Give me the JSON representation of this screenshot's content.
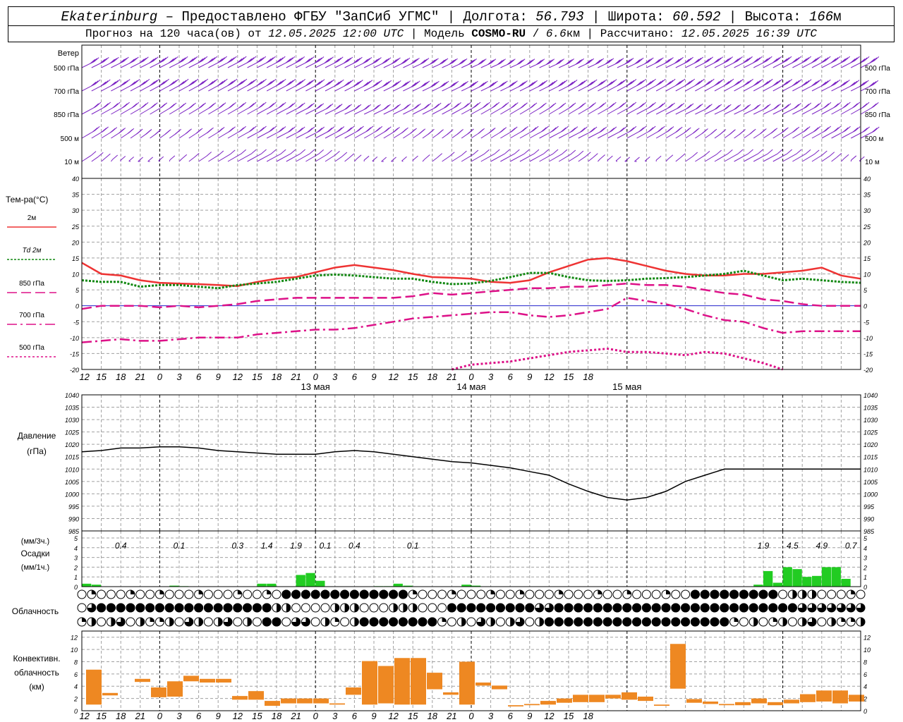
{
  "header": {
    "station": "Ekaterinburg",
    "dash": " – ",
    "provided": "Предоставлено ФГБУ \"ЗапСиб УГМС\"",
    "lon_label": "Долгота:",
    "lon": "56.793",
    "lat_label": "Широта:",
    "lat": "60.592",
    "alt_label": "Высота:",
    "alt": "166",
    "alt_unit": "м",
    "forecast_label": "Прогноз на 120 часа(ов) от",
    "forecast_time": "12.05.2025 12:00 UTC",
    "model_label": "Модель",
    "model": "COSMO-RU",
    "model_res": "6.6",
    "model_res_unit": "км",
    "calc_label": "Рассчитано:",
    "calc_time": "12.05.2025 16:39 UTC"
  },
  "colors": {
    "wind": "#7b22c4",
    "t2m": "#ee3333",
    "td": "#118811",
    "t850": "#dd1188",
    "t700": "#dd1188",
    "t500": "#dd1188",
    "precip": "#22cc22",
    "convective": "#ee8822",
    "zero_line": "#2222cc",
    "grid": "#a0a0a0"
  },
  "wind_panel": {
    "title": "Ветер",
    "levels": [
      "500 гПа",
      "700 гПа",
      "850 гПа",
      "500 м",
      "10 м"
    ]
  },
  "temp_panel": {
    "title": "Тем-ра(°C)",
    "legend": [
      {
        "key": "t2m",
        "label": "2м"
      },
      {
        "key": "td",
        "label_italic": "Td",
        "label": "2м"
      },
      {
        "key": "t850",
        "label": "850 гПа"
      },
      {
        "key": "t700",
        "label": "700 гПа"
      },
      {
        "key": "t500",
        "label": "500 гПа"
      }
    ],
    "ticks": [
      "40",
      "35",
      "30",
      "25",
      "20",
      "15",
      "10",
      "5",
      "0",
      "-5",
      "-10",
      "-15",
      "-20"
    ]
  },
  "pressure_panel": {
    "title": "Давление",
    "unit": "(гПа)",
    "ticks": [
      "1040",
      "1035",
      "1030",
      "1025",
      "1020",
      "1015",
      "1010",
      "1005",
      "1000",
      "995",
      "990",
      "985"
    ]
  },
  "precip_panel": {
    "unit_top": "(мм/3ч.)",
    "title": "Осадки",
    "unit_bottom": "(мм/1ч.)",
    "ticks": [
      "5",
      "4",
      "3",
      "2",
      "1",
      "0"
    ],
    "labels": [
      {
        "t": 4,
        "text": "0.4"
      },
      {
        "t": 10,
        "text": "0.1"
      },
      {
        "t": 16,
        "text": "0.3"
      },
      {
        "t": 19,
        "text": "1.4"
      },
      {
        "t": 22,
        "text": "1.9"
      },
      {
        "t": 25,
        "text": "0.1"
      },
      {
        "t": 28,
        "text": "0.4"
      },
      {
        "t": 34,
        "text": "0.1"
      },
      {
        "t": 70,
        "text": "1.9"
      },
      {
        "t": 73,
        "text": "4.5"
      },
      {
        "t": 76,
        "text": "4.9"
      },
      {
        "t": 79,
        "text": "0.7"
      }
    ]
  },
  "cloud_panel": {
    "title": "Облачность"
  },
  "conv_panel": {
    "title_1": "Конвективн.",
    "title_2": "облачность",
    "unit": "(км)",
    "ticks": [
      "12",
      "10",
      "8",
      "6",
      "4",
      "2",
      "0"
    ]
  },
  "time_axis": {
    "hour_labels": [
      "12",
      "15",
      "18",
      "21",
      "0",
      "3",
      "6",
      "9",
      "12",
      "15",
      "18",
      "21",
      "0",
      "3",
      "6",
      "9",
      "12",
      "15",
      "18",
      "21",
      "0",
      "3",
      "6",
      "9",
      "12",
      "15",
      "18"
    ],
    "date_labels": [
      {
        "t": 36,
        "text": "13 мая"
      },
      {
        "t": 60,
        "text": "14 мая"
      },
      {
        "t": 84,
        "text": "15 мая"
      }
    ]
  },
  "chart_data": {
    "type": "line",
    "x_hours_from_start": [
      0,
      3,
      6,
      9,
      12,
      15,
      18,
      21,
      24,
      27,
      30,
      33,
      36,
      39,
      42,
      45,
      48,
      51,
      54,
      57,
      60,
      63,
      66,
      69,
      72,
      75,
      78,
      81,
      84,
      87,
      90,
      93,
      96,
      99,
      102,
      105,
      108,
      111,
      114,
      117,
      120
    ],
    "x_hour_ticks_utc": [
      "12",
      "15",
      "18",
      "21",
      "0",
      "3",
      "6",
      "9",
      "12",
      "15",
      "18",
      "21",
      "0",
      "3",
      "6",
      "9",
      "12",
      "15",
      "18",
      "21",
      "0",
      "3",
      "6",
      "9",
      "12",
      "15",
      "18"
    ],
    "temperature": {
      "ylim": [
        -20,
        40
      ],
      "series": [
        {
          "name": "2м",
          "values": [
            13.5,
            10,
            9.5,
            8,
            7.2,
            7,
            6.8,
            6.5,
            6.2,
            7.5,
            8.5,
            9,
            10.5,
            12,
            12.8,
            12,
            11.2,
            10,
            9,
            8.8,
            8.5,
            7.5,
            7.2,
            8,
            10.5,
            12.5,
            14.5,
            15,
            14,
            12.5,
            11,
            10,
            9.5,
            9.5,
            10,
            10,
            10.5,
            11,
            12,
            9.5,
            8.5
          ]
        },
        {
          "name": "Td 2м",
          "values": [
            8,
            7.5,
            7.5,
            6,
            6.5,
            6.5,
            6,
            5.5,
            6.5,
            7,
            7.5,
            8.5,
            9.5,
            9.8,
            9.5,
            9,
            8.5,
            8.5,
            7.5,
            6.8,
            7,
            7.8,
            9,
            10.3,
            10.3,
            9,
            8,
            7.8,
            8,
            8.5,
            8.7,
            9,
            9.5,
            10,
            11,
            9.5,
            8,
            8.5,
            8,
            7.5,
            7.2
          ]
        },
        {
          "name": "850 гПа",
          "values": [
            -1,
            0,
            0,
            0,
            -0.5,
            0,
            -0.5,
            0,
            0.5,
            1.5,
            2,
            2.5,
            2.5,
            2.5,
            2.5,
            2.5,
            2.5,
            3,
            4,
            3.5,
            4,
            4.5,
            5,
            5.5,
            5.5,
            6,
            6,
            6.5,
            7,
            6.5,
            6.5,
            6,
            5,
            4,
            3.5,
            2,
            1.5,
            0.5,
            0,
            0,
            0
          ]
        },
        {
          "name": "700 гПа",
          "values": [
            -11.5,
            -11,
            -10.5,
            -11,
            -11,
            -10.5,
            -10,
            -10,
            -10,
            -9,
            -8.5,
            -8,
            -7.5,
            -7.5,
            -7,
            -6,
            -5,
            -4,
            -3.5,
            -3,
            -2.5,
            -2,
            -2,
            -3,
            -3.5,
            -3,
            -2,
            -1,
            2.5,
            1.5,
            0.5,
            -1,
            -3,
            -4.5,
            -5,
            -7,
            -8.5,
            -8,
            -8,
            -8,
            -8
          ]
        },
        {
          "name": "500 гПа",
          "values": [
            null,
            null,
            null,
            null,
            null,
            null,
            null,
            null,
            null,
            null,
            null,
            null,
            null,
            null,
            null,
            null,
            null,
            null,
            null,
            -20,
            -18.5,
            -18,
            -17.5,
            -16.5,
            -15.5,
            -14.5,
            -14,
            -13.5,
            -14.5,
            -14.5,
            -15,
            -15.5,
            -14.5,
            -15,
            -16.5,
            -18,
            -20,
            null,
            null,
            null,
            null
          ]
        }
      ]
    },
    "pressure": {
      "ylim": [
        985,
        1040
      ],
      "series": [
        {
          "name": "Давление",
          "values": [
            1017,
            1017.5,
            1018.5,
            1018.5,
            1019,
            1019,
            1018.5,
            1017.5,
            1017,
            1016.5,
            1016,
            1016,
            1016,
            1017,
            1017.5,
            1017,
            1016,
            1015,
            1014,
            1013,
            1012.5,
            1011.5,
            1010.5,
            1009,
            1007.5,
            1004,
            1001,
            998.5,
            997.5,
            998.5,
            1001,
            1005,
            1007.5,
            1010,
            1010,
            1010,
            1010,
            1010,
            1010,
            1010,
            1010
          ]
        }
      ]
    },
    "precipitation_mm_per_h": {
      "ylim": [
        0,
        5
      ],
      "bars": [
        {
          "t": 0,
          "v": 0.3
        },
        {
          "t": 1,
          "v": 0.2
        },
        {
          "t": 9,
          "v": 0.1
        },
        {
          "t": 10,
          "v": 0.05
        },
        {
          "t": 18,
          "v": 0.3
        },
        {
          "t": 19,
          "v": 0.3
        },
        {
          "t": 22,
          "v": 1.2
        },
        {
          "t": 23,
          "v": 1.4
        },
        {
          "t": 24,
          "v": 0.6
        },
        {
          "t": 30,
          "v": 0.05
        },
        {
          "t": 31,
          "v": 0.05
        },
        {
          "t": 32,
          "v": 0.3
        },
        {
          "t": 33,
          "v": 0.1
        },
        {
          "t": 39,
          "v": 0.2
        },
        {
          "t": 40,
          "v": 0.1
        },
        {
          "t": 69,
          "v": 0.2
        },
        {
          "t": 70,
          "v": 1.6
        },
        {
          "t": 71,
          "v": 0.4
        },
        {
          "t": 72,
          "v": 2.0
        },
        {
          "t": 73,
          "v": 1.8
        },
        {
          "t": 74,
          "v": 1.0
        },
        {
          "t": 75,
          "v": 1.1
        },
        {
          "t": 76,
          "v": 2.0
        },
        {
          "t": 77,
          "v": 2.0
        },
        {
          "t": 78,
          "v": 0.8
        }
      ]
    },
    "convective_cloud_km": {
      "ylim": [
        0,
        13
      ],
      "bars": [
        {
          "t": 0,
          "base": 1,
          "top": 6.7
        },
        {
          "t": 1,
          "base": 2.5,
          "top": 2.9
        },
        {
          "t": 3,
          "base": 4.7,
          "top": 5.2
        },
        {
          "t": 4,
          "base": 2.2,
          "top": 3.8
        },
        {
          "t": 5,
          "base": 2.3,
          "top": 4.8
        },
        {
          "t": 6,
          "base": 4.8,
          "top": 5.7
        },
        {
          "t": 7,
          "base": 4.6,
          "top": 5.2
        },
        {
          "t": 8,
          "base": 4.6,
          "top": 5.2
        },
        {
          "t": 9,
          "base": 1.8,
          "top": 2.4
        },
        {
          "t": 10,
          "base": 1.8,
          "top": 3.2
        },
        {
          "t": 11,
          "base": 0.8,
          "top": 1.6
        },
        {
          "t": 12,
          "base": 1.2,
          "top": 2
        },
        {
          "t": 13,
          "base": 1.2,
          "top": 2
        },
        {
          "t": 14,
          "base": 1.2,
          "top": 2
        },
        {
          "t": 15,
          "base": 1,
          "top": 1.2
        },
        {
          "t": 16,
          "base": 2.6,
          "top": 3.8
        },
        {
          "t": 17,
          "base": 1,
          "top": 8.1
        },
        {
          "t": 18,
          "base": 1.2,
          "top": 7.3
        },
        {
          "t": 19,
          "base": 1,
          "top": 8.6
        },
        {
          "t": 20,
          "base": 1,
          "top": 8.6
        },
        {
          "t": 21,
          "base": 3.5,
          "top": 6.2
        },
        {
          "t": 22,
          "base": 2.6,
          "top": 3
        },
        {
          "t": 23,
          "base": 1,
          "top": 8
        },
        {
          "t": 24,
          "base": 4.1,
          "top": 4.6
        },
        {
          "t": 25,
          "base": 3.5,
          "top": 4.1
        },
        {
          "t": 26,
          "base": 0.7,
          "top": 0.9
        },
        {
          "t": 27,
          "base": 0.9,
          "top": 1.1
        },
        {
          "t": 28,
          "base": 1,
          "top": 1.6
        },
        {
          "t": 29,
          "base": 1.3,
          "top": 2
        },
        {
          "t": 30,
          "base": 1.4,
          "top": 2.6
        },
        {
          "t": 31,
          "base": 1.4,
          "top": 2.6
        },
        {
          "t": 32,
          "base": 2,
          "top": 2.6
        },
        {
          "t": 33,
          "base": 1.8,
          "top": 3
        },
        {
          "t": 34,
          "base": 1.6,
          "top": 2.3
        },
        {
          "t": 35,
          "base": 0.8,
          "top": 1
        },
        {
          "t": 36,
          "base": 3.6,
          "top": 10.9
        },
        {
          "t": 37,
          "base": 1.3,
          "top": 1.9
        },
        {
          "t": 38,
          "base": 1.1,
          "top": 1.5
        },
        {
          "t": 39,
          "base": 0.9,
          "top": 1.1
        },
        {
          "t": 40,
          "base": 0.9,
          "top": 1.4
        },
        {
          "t": 41,
          "base": 1.2,
          "top": 2
        },
        {
          "t": 42,
          "base": 0.9,
          "top": 1.4
        },
        {
          "t": 43,
          "base": 1.2,
          "top": 1.8
        },
        {
          "t": 44,
          "base": 1.4,
          "top": 2.7
        },
        {
          "t": 45,
          "base": 1.5,
          "top": 3.3
        },
        {
          "t": 46,
          "base": 1.2,
          "top": 3.3
        },
        {
          "t": 47,
          "base": 1.5,
          "top": 2.6
        }
      ]
    }
  }
}
